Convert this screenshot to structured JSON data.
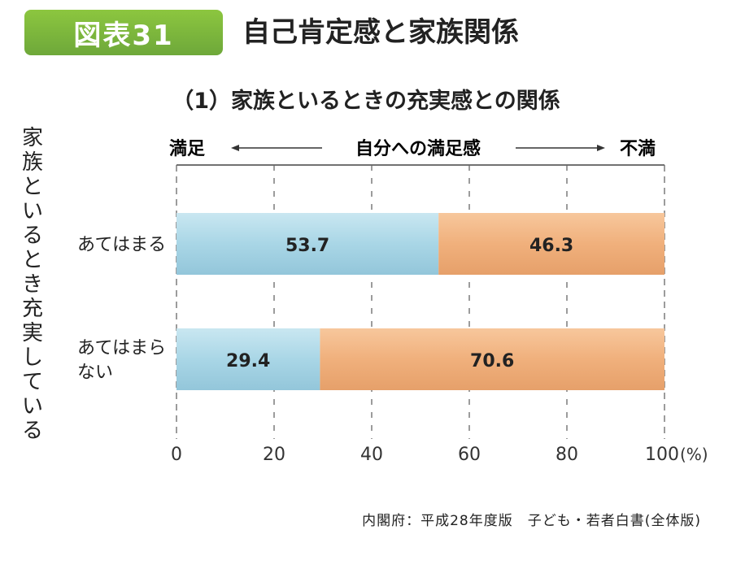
{
  "header": {
    "badge": "図表31",
    "title": "自己肯定感と家族関係"
  },
  "chart_data": {
    "type": "bar",
    "orientation": "horizontal",
    "stacked": true,
    "title": "（1）家族といるときの充実感との関係",
    "scale_caption": {
      "left": "満足",
      "center": "自分への満足感",
      "right": "不満"
    },
    "ylabel": "家族といるとき充実している",
    "categories": [
      "あてはまる",
      "あてはまらない"
    ],
    "category_lines": [
      [
        "あてはまる"
      ],
      [
        "あてはまら",
        "ない"
      ]
    ],
    "series": [
      {
        "values": [
          53.7,
          29.4
        ],
        "color": "#a9d6e6"
      },
      {
        "values": [
          46.3,
          70.6
        ],
        "color": "#f0b07c"
      }
    ],
    "xlim": [
      0,
      100
    ],
    "xticks": [
      0,
      20,
      40,
      60,
      80,
      100
    ],
    "xtick_labels": [
      "0",
      "20",
      "40",
      "60",
      "80",
      "100"
    ],
    "unit": "(%)",
    "grid": true
  },
  "source": "内閣府：平成28年度版　子ども・若者白書(全体版)"
}
